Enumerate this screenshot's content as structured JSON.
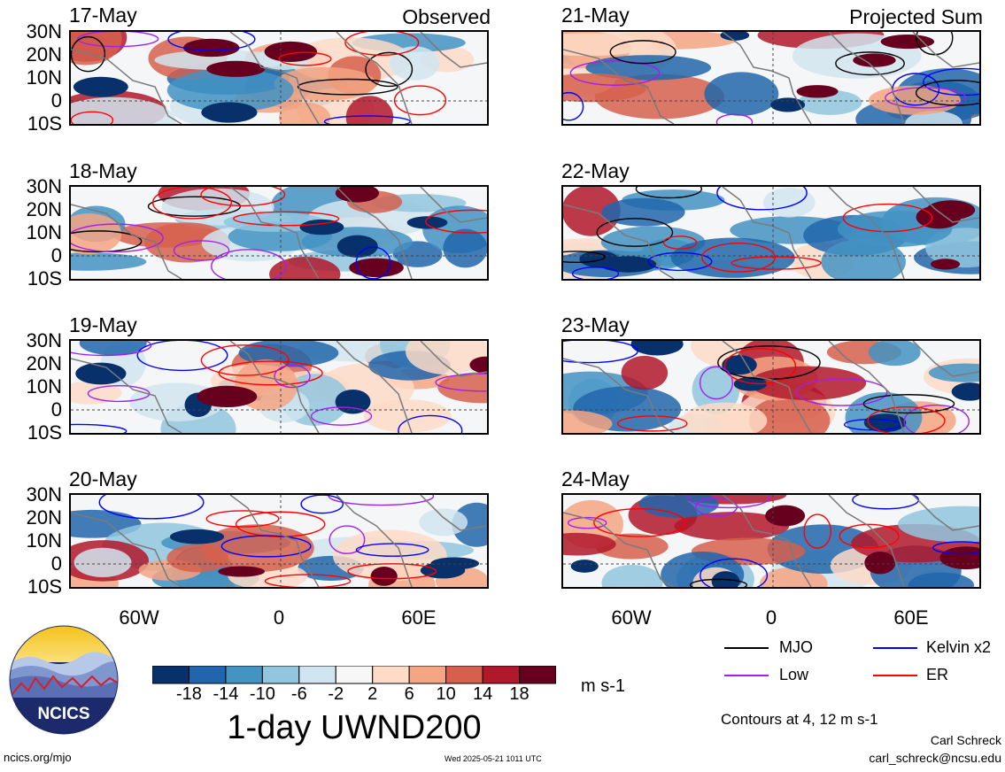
{
  "observed_tag": "Observed",
  "projected_tag": "Projected Sum",
  "panels_left": [
    {
      "date": "17-May"
    },
    {
      "date": "18-May"
    },
    {
      "date": "19-May"
    },
    {
      "date": "20-May"
    }
  ],
  "panels_right": [
    {
      "date": "21-May"
    },
    {
      "date": "22-May"
    },
    {
      "date": "23-May"
    },
    {
      "date": "24-May"
    }
  ],
  "lat_labels": [
    "30N",
    "20N",
    "10N",
    "0",
    "10S"
  ],
  "lon_labels": [
    "60W",
    "0",
    "60E"
  ],
  "colorbar": {
    "ticks": [
      "-18",
      "-14",
      "-10",
      "-6",
      "-2",
      "2",
      "6",
      "10",
      "14",
      "18"
    ],
    "colors": [
      "#08306b",
      "#2166ac",
      "#4393c3",
      "#92c5de",
      "#d1e5f0",
      "#f7f7f7",
      "#fddbc7",
      "#f4a582",
      "#d6604d",
      "#b2182b",
      "#67001f"
    ],
    "units": "m s-1",
    "title": "1-day UWND200"
  },
  "legend": {
    "items": [
      {
        "label": "MJO",
        "color": "#000000"
      },
      {
        "label": "Kelvin x2",
        "color": "#0000ff"
      },
      {
        "label": "Low",
        "color": "#a020f0"
      },
      {
        "label": "ER",
        "color": "#ff0000"
      }
    ],
    "contours_note": "Contours at 4, 12 m s-1"
  },
  "footer": {
    "site": "ncics.org/mjo",
    "timestamp": "Wed 2025-05-21 1011 UTC",
    "author": "Carl Schreck",
    "email": "carl_schreck@ncsu.edu"
  },
  "logo": {
    "text": "NCICS"
  }
}
